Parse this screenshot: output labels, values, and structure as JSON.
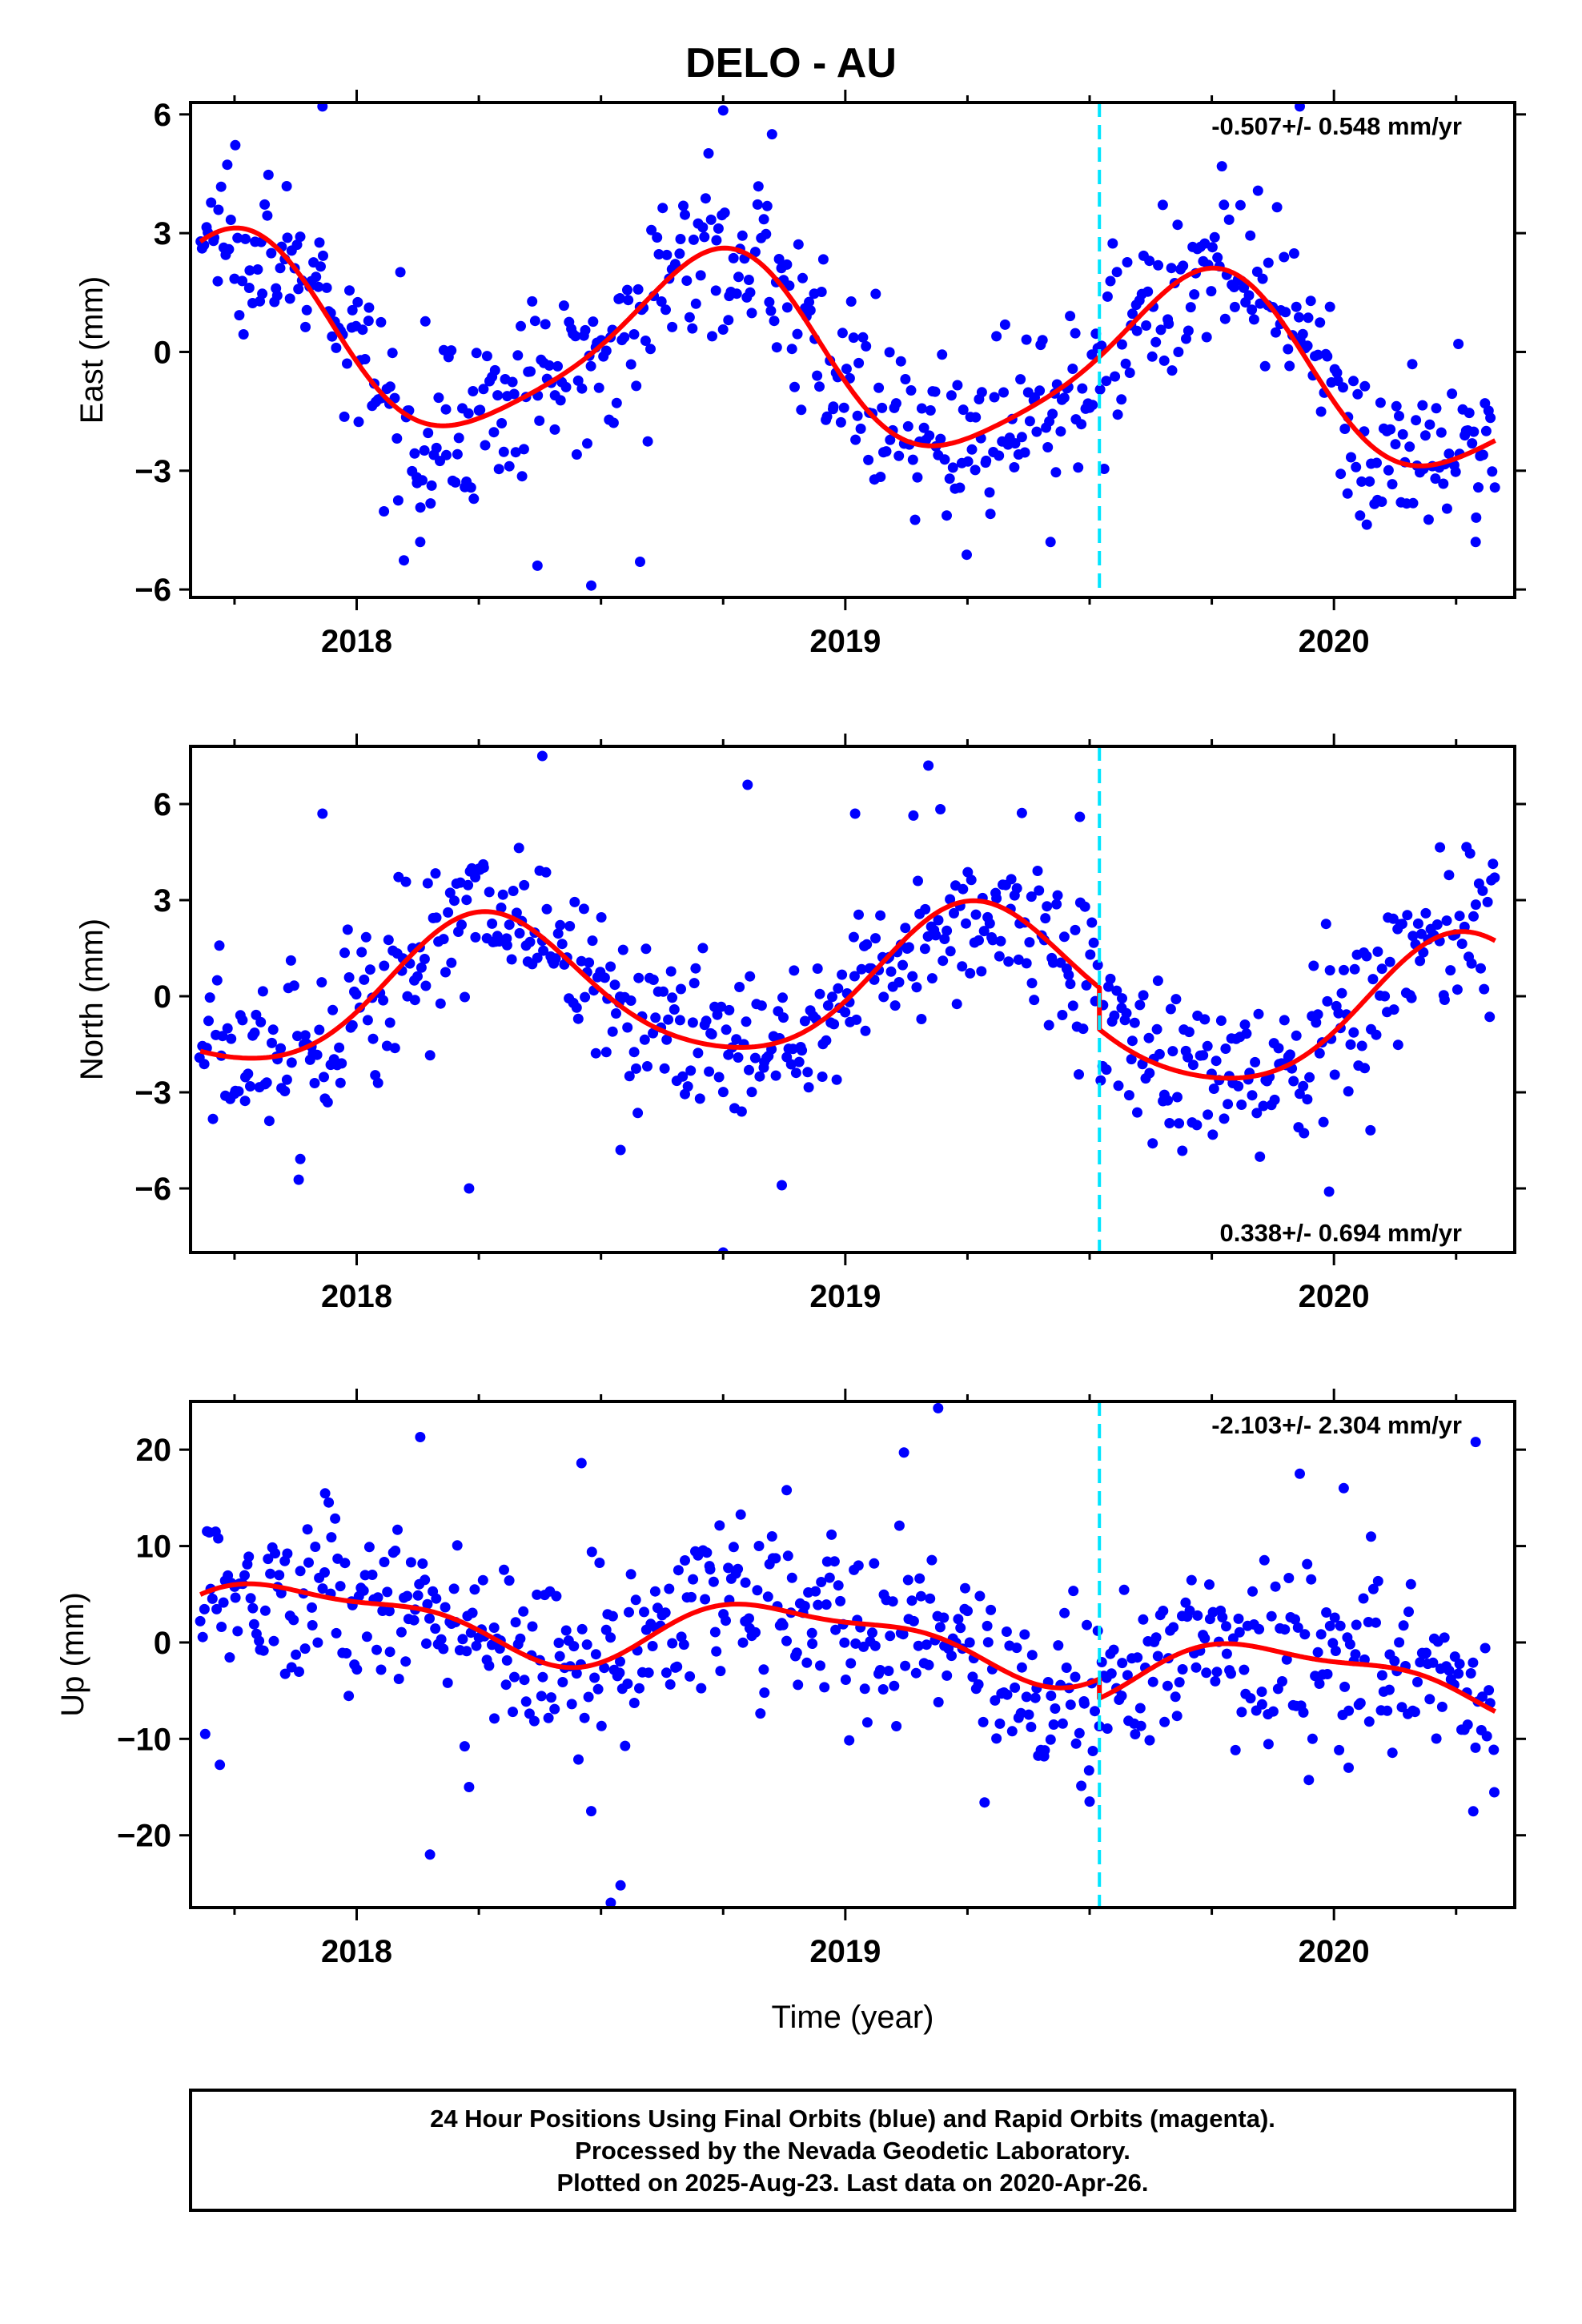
{
  "title": "DELO - AU",
  "footer": {
    "lines": [
      "24 Hour Positions Using Final Orbits (blue) and Rapid Orbits (magenta).",
      "Processed by the Nevada Geodetic Laboratory.",
      "Plotted on 2025-Aug-23. Last data on 2020-Apr-26."
    ]
  },
  "colors": {
    "points": "#0000ff",
    "fit": "#ff0000",
    "event": "#00e5ff"
  },
  "chart_data": [
    {
      "type": "scatter",
      "name": "east",
      "ylabel": "East (mm)",
      "xlabel": "",
      "xlim": [
        2017.66,
        2020.37
      ],
      "ylim": [
        -6.2,
        6.3
      ],
      "yticks": [
        -6,
        -3,
        0,
        3,
        6
      ],
      "ytick_labels": [
        "−6",
        "−3",
        "0",
        "3",
        "6"
      ],
      "xticks": [
        2018,
        2019,
        2020
      ],
      "xtick_labels": [
        "2018",
        "2019",
        "2020"
      ],
      "xminor": [
        2017.75,
        2018.25,
        2018.5,
        2018.75,
        2019.25,
        2019.5,
        2019.75,
        2020.25
      ],
      "event_x": 2019.52,
      "rate_text": "-0.507+/- 0.548 mm/yr",
      "rate_position": "top-right",
      "fit": {
        "offset": -0.1,
        "trend": -0.507,
        "ann_amp": 2.3,
        "ann_phase": 1.4,
        "semi_amp": 0.4,
        "semi_phase": 0.3,
        "step": 0.0
      },
      "outliers": [
        {
          "x": 2018.13,
          "y": -4.8
        },
        {
          "x": 2018.37,
          "y": -5.4
        },
        {
          "x": 2018.48,
          "y": -5.9
        },
        {
          "x": 2018.58,
          "y": -5.3
        },
        {
          "x": 2018.75,
          "y": 6.1
        },
        {
          "x": 2018.85,
          "y": 5.5
        },
        {
          "x": 2017.93,
          "y": 6.2
        },
        {
          "x": 2019.93,
          "y": 6.2
        },
        {
          "x": 2020.29,
          "y": -4.8
        },
        {
          "x": 2019.42,
          "y": -4.8
        }
      ]
    },
    {
      "type": "scatter",
      "name": "north",
      "ylabel": "North (mm)",
      "xlabel": "",
      "xlim": [
        2017.66,
        2020.37
      ],
      "ylim": [
        -8.0,
        7.8
      ],
      "yticks": [
        -6,
        -3,
        0,
        3,
        6
      ],
      "ytick_labels": [
        "−6",
        "−3",
        "0",
        "3",
        "6"
      ],
      "xticks": [
        2018,
        2019,
        2020
      ],
      "xtick_labels": [
        "2018",
        "2019",
        "2020"
      ],
      "xminor": [
        2017.75,
        2018.25,
        2018.5,
        2018.75,
        2019.25,
        2019.5,
        2019.75,
        2020.25
      ],
      "event_x": 2019.52,
      "rate_text": "0.338+/- 0.694 mm/yr",
      "rate_position": "bottom-right",
      "fit": {
        "offset": 0.4,
        "trend": 0.338,
        "ann_amp": 2.2,
        "ann_phase": -2.0,
        "semi_amp": 0.3,
        "semi_phase": 1.0,
        "step": -1.3
      },
      "outliers": [
        {
          "x": 2018.38,
          "y": 7.5
        },
        {
          "x": 2018.8,
          "y": 6.6
        },
        {
          "x": 2019.17,
          "y": 7.2
        },
        {
          "x": 2018.75,
          "y": -8.0
        },
        {
          "x": 2018.23,
          "y": -6.0
        },
        {
          "x": 2018.54,
          "y": -4.8
        },
        {
          "x": 2018.87,
          "y": -5.9
        },
        {
          "x": 2019.02,
          "y": 5.7
        },
        {
          "x": 2017.93,
          "y": 5.7
        },
        {
          "x": 2019.99,
          "y": -6.1
        },
        {
          "x": 2019.48,
          "y": 5.6
        }
      ]
    },
    {
      "type": "scatter",
      "name": "up",
      "ylabel": "Up (mm)",
      "xlabel": "Time (year)",
      "xlim": [
        2017.66,
        2020.37
      ],
      "ylim": [
        -27.5,
        25.0
      ],
      "yticks": [
        -20,
        -10,
        0,
        10,
        20
      ],
      "ytick_labels": [
        "−20",
        "−10",
        "0",
        "10",
        "20"
      ],
      "xticks": [
        2018,
        2019,
        2020
      ],
      "xtick_labels": [
        "2018",
        "2019",
        "2020"
      ],
      "xminor": [
        2017.75,
        2018.25,
        2018.5,
        2018.75,
        2019.25,
        2019.5,
        2019.75,
        2020.25
      ],
      "event_x": 2019.52,
      "rate_text": "-2.103+/- 2.304 mm/yr",
      "rate_position": "top-right",
      "fit": {
        "offset": 0.5,
        "trend": -2.103,
        "ann_amp": 3.2,
        "ann_phase": 0.3,
        "semi_amp": 1.2,
        "semi_phase": 1.5,
        "step": -2.0
      },
      "outliers": [
        {
          "x": 2018.13,
          "y": 21.3
        },
        {
          "x": 2019.19,
          "y": 24.3
        },
        {
          "x": 2019.12,
          "y": 19.7
        },
        {
          "x": 2018.15,
          "y": -22.0
        },
        {
          "x": 2018.23,
          "y": -15.0
        },
        {
          "x": 2018.48,
          "y": -17.5
        },
        {
          "x": 2018.52,
          "y": -27.0
        },
        {
          "x": 2018.54,
          "y": -25.2
        },
        {
          "x": 2019.5,
          "y": -16.5
        },
        {
          "x": 2019.93,
          "y": 17.5
        },
        {
          "x": 2020.02,
          "y": 16.0
        },
        {
          "x": 2020.29,
          "y": 20.8
        },
        {
          "x": 2017.69,
          "y": -9.5
        },
        {
          "x": 2017.72,
          "y": -12.7
        },
        {
          "x": 2018.46,
          "y": 18.6
        },
        {
          "x": 2020.03,
          "y": -13.0
        },
        {
          "x": 2018.88,
          "y": 15.8
        }
      ]
    }
  ]
}
